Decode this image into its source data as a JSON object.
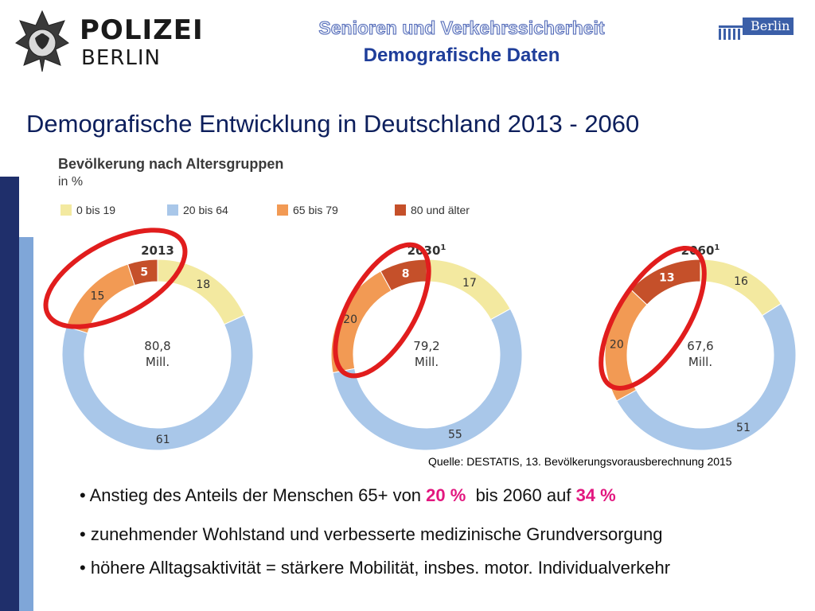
{
  "header": {
    "logo_line1": "POLIZEI",
    "logo_line2": "BERLIN",
    "title": "Senioren und Verkehrssicherheit",
    "subtitle": "Demografische Daten",
    "berlin_logo_text": "Berlin"
  },
  "page_title": "Demografische Entwicklung in Deutschland 2013 - 2060",
  "colors": {
    "age_0_19": "#f3e9a0",
    "age_20_64": "#a9c7e9",
    "age_65_79": "#f29a54",
    "age_80_plus": "#c5502a",
    "highlight_ring": "#e11d1d",
    "accent_pink": "#e2177f",
    "dark_blue": "#1f2f6b",
    "light_blue": "#7fa6d8"
  },
  "chart_data": {
    "type": "pie",
    "title": "Bevölkerung nach Altersgruppen",
    "unit": "in %",
    "legend": [
      "0 bis 19",
      "20 bis 64",
      "65 bis 79",
      "80 und älter"
    ],
    "charts": [
      {
        "year": "2013",
        "footnote": "",
        "total": "80,8",
        "total_unit": "Mill.",
        "values": [
          18,
          61,
          15,
          5
        ],
        "labels": [
          "18",
          "61",
          "15",
          "5"
        ]
      },
      {
        "year": "2030",
        "footnote": "1",
        "total": "79,2",
        "total_unit": "Mill.",
        "values": [
          17,
          55,
          20,
          8
        ],
        "labels": [
          "17",
          "55",
          "20",
          "8"
        ]
      },
      {
        "year": "2060",
        "footnote": "1",
        "total": "67,6",
        "total_unit": "Mill.",
        "values": [
          16,
          51,
          20,
          13
        ],
        "labels": [
          "16",
          "51",
          "20",
          "13"
        ]
      }
    ]
  },
  "source": "Quelle: DESTATIS, 13. Bevölkerungsvorausberechnung 2015",
  "bullets": {
    "b1_text1": "Anstieg des Anteils der Menschen 65+ von",
    "b1_val1": "20 %",
    "b1_text2": "bis 2060 auf",
    "b1_val2": "34 %",
    "b2": "zunehmender Wohlstand und verbesserte medizinische Grundversorgung",
    "b3": "höhere Alltagsaktivität = stärkere Mobilität, insbes. motor. Individualverkehr"
  }
}
